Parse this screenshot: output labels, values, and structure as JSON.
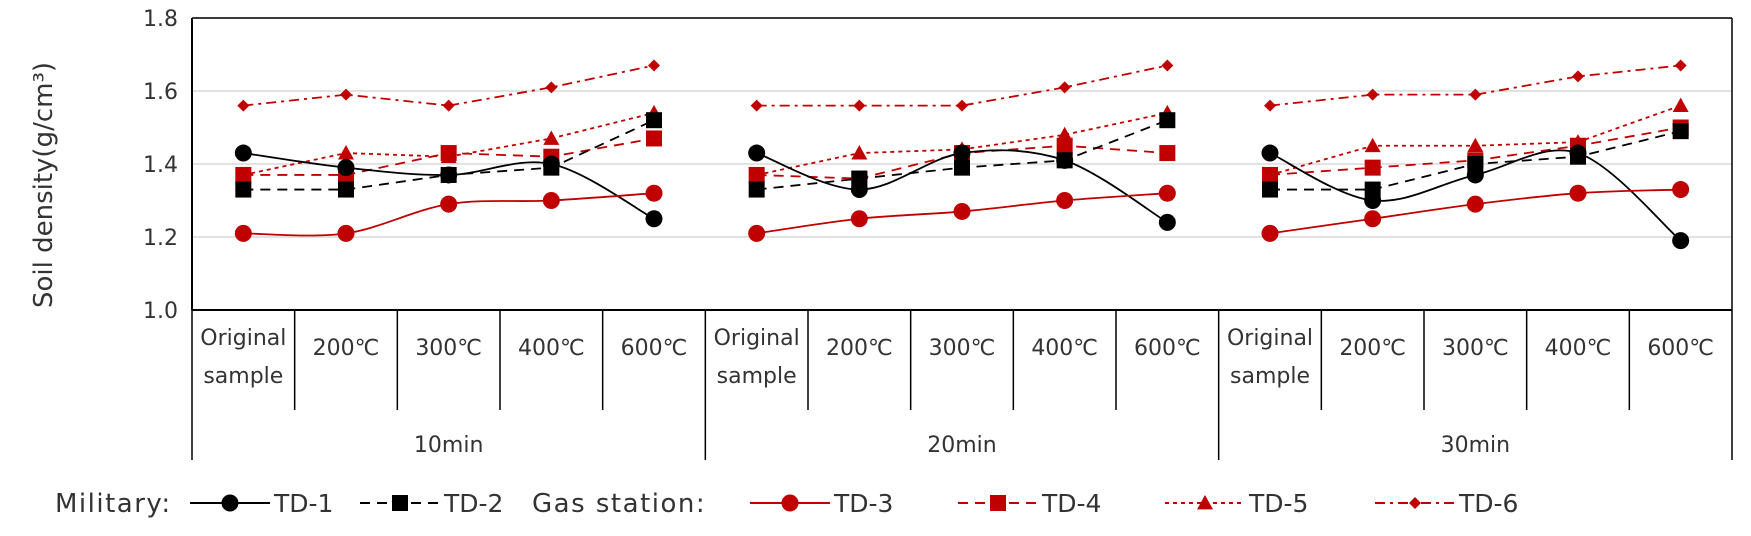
{
  "chart_data": {
    "type": "line",
    "ylabel": "Soil density(g/cm³)",
    "ylim": [
      1.0,
      1.8
    ],
    "y_ticks": [
      "1.0",
      "1.2",
      "1.4",
      "1.6",
      "1.8"
    ],
    "grid": true,
    "legend_position": "bottom",
    "categories": [
      "Original sample",
      "200℃",
      "300℃",
      "400℃",
      "600℃",
      "Original sample",
      "200℃",
      "300℃",
      "400℃",
      "600℃",
      "Original sample",
      "200℃",
      "300℃",
      "400℃",
      "600℃"
    ],
    "category_lines": [
      [
        "Original",
        "sample"
      ],
      [
        "200℃"
      ],
      [
        "300℃"
      ],
      [
        "400℃"
      ],
      [
        "600℃"
      ],
      [
        "Original",
        "sample"
      ],
      [
        "200℃"
      ],
      [
        "300℃"
      ],
      [
        "400℃"
      ],
      [
        "600℃"
      ],
      [
        "Original",
        "sample"
      ],
      [
        "200℃"
      ],
      [
        "300℃"
      ],
      [
        "400℃"
      ],
      [
        "600℃"
      ]
    ],
    "groups": [
      "10min",
      "20min",
      "30min"
    ],
    "series": [
      {
        "name": "TD-1",
        "color": "#000000",
        "dash": "solid",
        "marker": "circle",
        "smooth": true,
        "values": [
          1.43,
          1.39,
          1.37,
          1.4,
          1.25,
          1.43,
          1.33,
          1.43,
          1.41,
          1.24,
          1.43,
          1.3,
          1.37,
          1.43,
          1.19
        ]
      },
      {
        "name": "TD-2",
        "color": "#000000",
        "dash": "dashed",
        "marker": "square",
        "smooth": false,
        "values": [
          1.33,
          1.33,
          1.37,
          1.39,
          1.52,
          1.33,
          1.36,
          1.39,
          1.41,
          1.52,
          1.33,
          1.33,
          1.4,
          1.42,
          1.49
        ]
      },
      {
        "name": "TD-3",
        "color": "#c00000",
        "dash": "solid",
        "marker": "circle",
        "smooth": true,
        "values": [
          1.21,
          1.21,
          1.29,
          1.3,
          1.32,
          1.21,
          1.25,
          1.27,
          1.3,
          1.32,
          1.21,
          1.25,
          1.29,
          1.32,
          1.33
        ]
      },
      {
        "name": "TD-4",
        "color": "#c00000",
        "dash": "dashed",
        "marker": "square",
        "smooth": false,
        "values": [
          1.37,
          1.37,
          1.43,
          1.42,
          1.47,
          1.37,
          1.36,
          1.43,
          1.45,
          1.43,
          1.37,
          1.39,
          1.41,
          1.45,
          1.5
        ]
      },
      {
        "name": "TD-5",
        "color": "#c00000",
        "dash": "dotted",
        "marker": "triangle",
        "smooth": false,
        "values": [
          1.37,
          1.43,
          1.42,
          1.47,
          1.54,
          1.37,
          1.43,
          1.44,
          1.48,
          1.54,
          1.37,
          1.45,
          1.45,
          1.46,
          1.56
        ]
      },
      {
        "name": "TD-6",
        "color": "#c00000",
        "dash": "dashdot",
        "marker": "diamond",
        "smooth": false,
        "values": [
          1.56,
          1.59,
          1.56,
          1.61,
          1.67,
          1.56,
          1.56,
          1.56,
          1.61,
          1.67,
          1.56,
          1.59,
          1.59,
          1.64,
          1.67
        ]
      }
    ],
    "legend": {
      "groups": [
        {
          "label": "Military:",
          "series": [
            "TD-1",
            "TD-2"
          ]
        },
        {
          "label": "Gas station:",
          "series": [
            "TD-3",
            "TD-4",
            "TD-5",
            "TD-6"
          ]
        }
      ]
    }
  }
}
